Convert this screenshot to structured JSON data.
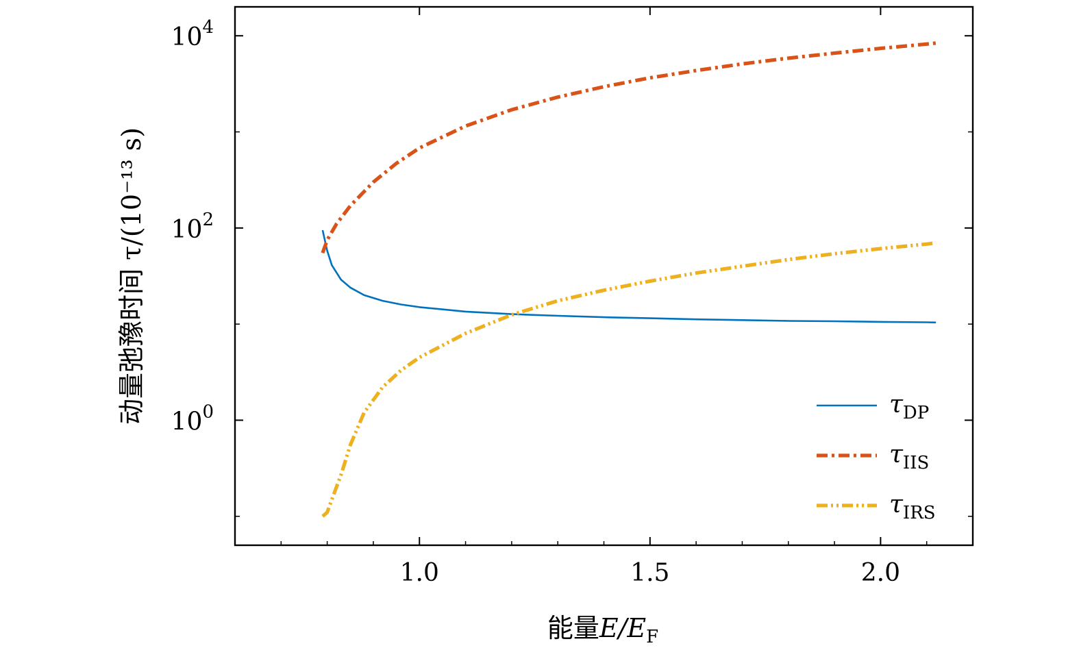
{
  "chart_data": {
    "type": "line",
    "xlabel": "能量",
    "xlabel_math": "E/E",
    "xlabel_math_sub": "F",
    "ylabel": "动量弛豫时间 τ/(10⁻¹³ s)",
    "y_scale": "log",
    "xlim": [
      0.6,
      2.2
    ],
    "ylim": [
      0.05,
      20000
    ],
    "x_ticks": [
      {
        "value": 1.0,
        "label": "1.0"
      },
      {
        "value": 1.5,
        "label": "1.5"
      },
      {
        "value": 2.0,
        "label": "2.0"
      }
    ],
    "y_ticks": [
      {
        "value": 1,
        "base": "10",
        "exp": "0"
      },
      {
        "value": 100,
        "base": "10",
        "exp": "2"
      },
      {
        "value": 10000,
        "base": "10",
        "exp": "4"
      }
    ],
    "grid": false,
    "legend_position": "lower-right",
    "series": [
      {
        "name": "τ",
        "name_sub": "DP",
        "color": "#0072BD",
        "style": "solid",
        "x": [
          0.79,
          0.8,
          0.81,
          0.83,
          0.85,
          0.88,
          0.92,
          0.96,
          1.0,
          1.1,
          1.2,
          1.3,
          1.4,
          1.5,
          1.6,
          1.7,
          1.8,
          1.9,
          2.0,
          2.1,
          2.12
        ],
        "y": [
          95,
          58,
          41,
          29,
          24,
          20,
          17.5,
          16,
          15,
          13.5,
          12.7,
          12.2,
          11.8,
          11.5,
          11.2,
          11.0,
          10.8,
          10.7,
          10.55,
          10.45,
          10.4
        ]
      },
      {
        "name": "τ",
        "name_sub": "IIS",
        "color": "#D95319",
        "style": "dash-dot",
        "x": [
          0.79,
          0.8,
          0.82,
          0.85,
          0.9,
          0.95,
          1.0,
          1.1,
          1.2,
          1.3,
          1.4,
          1.5,
          1.6,
          1.7,
          1.8,
          1.9,
          2.0,
          2.1,
          2.12
        ],
        "y": [
          55,
          75,
          110,
          170,
          300,
          470,
          680,
          1150,
          1700,
          2300,
          2950,
          3650,
          4350,
          5100,
          5850,
          6600,
          7400,
          8200,
          8400
        ]
      },
      {
        "name": "τ",
        "name_sub": "IRS",
        "color": "#EDB120",
        "style": "dash-dot-dot",
        "x": [
          0.79,
          0.8,
          0.81,
          0.83,
          0.85,
          0.88,
          0.92,
          0.96,
          1.0,
          1.1,
          1.2,
          1.3,
          1.4,
          1.5,
          1.6,
          1.7,
          1.8,
          1.9,
          2.0,
          2.1,
          2.12
        ],
        "y": [
          0.1,
          0.11,
          0.15,
          0.27,
          0.55,
          1.2,
          2.2,
          3.3,
          4.5,
          8.0,
          12.5,
          17.5,
          22.5,
          28,
          34,
          40,
          47,
          54,
          61,
          68,
          70
        ]
      }
    ]
  }
}
